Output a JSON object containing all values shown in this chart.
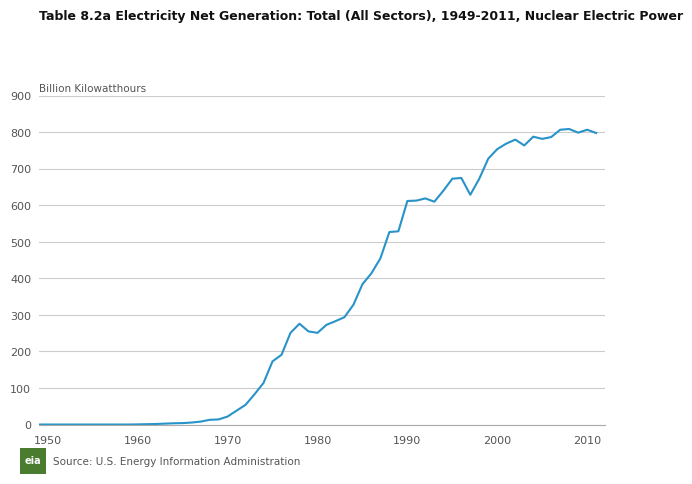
{
  "title": "Table 8.2a Electricity Net Generation: Total (All Sectors), 1949-2011, Nuclear Electric Power",
  "ylabel": "Billion Kilowatthours",
  "source": "Source: U.S. Energy Information Administration",
  "line_color": "#2893c8",
  "background_color": "#ffffff",
  "grid_color": "#cccccc",
  "ylim": [
    0,
    900
  ],
  "yticks": [
    0,
    100,
    200,
    300,
    400,
    500,
    600,
    700,
    800,
    900
  ],
  "xlim": [
    1949,
    2012
  ],
  "xticks": [
    1950,
    1960,
    1970,
    1980,
    1990,
    2000,
    2010
  ],
  "data": {
    "years": [
      1949,
      1950,
      1951,
      1952,
      1953,
      1954,
      1955,
      1956,
      1957,
      1958,
      1959,
      1960,
      1961,
      1962,
      1963,
      1964,
      1965,
      1966,
      1967,
      1968,
      1969,
      1970,
      1971,
      1972,
      1973,
      1974,
      1975,
      1976,
      1977,
      1978,
      1979,
      1980,
      1981,
      1982,
      1983,
      1984,
      1985,
      1986,
      1987,
      1988,
      1989,
      1990,
      1991,
      1992,
      1993,
      1994,
      1995,
      1996,
      1997,
      1998,
      1999,
      2000,
      2001,
      2002,
      2003,
      2004,
      2005,
      2006,
      2007,
      2008,
      2009,
      2010,
      2011
    ],
    "values": [
      0.1,
      0.1,
      0.1,
      0.1,
      0.1,
      0.1,
      0.1,
      0.1,
      0.1,
      0.1,
      0.1,
      0.5,
      1.0,
      1.5,
      2.5,
      3.5,
      4.0,
      5.5,
      8.0,
      13.0,
      14.0,
      22.0,
      38.0,
      54.0,
      83.0,
      114.0,
      173.0,
      191.0,
      251.0,
      276.0,
      255.0,
      251.0,
      273.0,
      283.0,
      294.0,
      328.0,
      384.0,
      414.0,
      455.0,
      527.0,
      529.0,
      612.0,
      613.0,
      619.0,
      610.0,
      640.0,
      673.0,
      675.0,
      629.0,
      673.0,
      728.0,
      754.0,
      769.0,
      780.0,
      764.0,
      788.0,
      782.0,
      787.0,
      807.0,
      809.0,
      799.0,
      807.0,
      798.0
    ]
  }
}
